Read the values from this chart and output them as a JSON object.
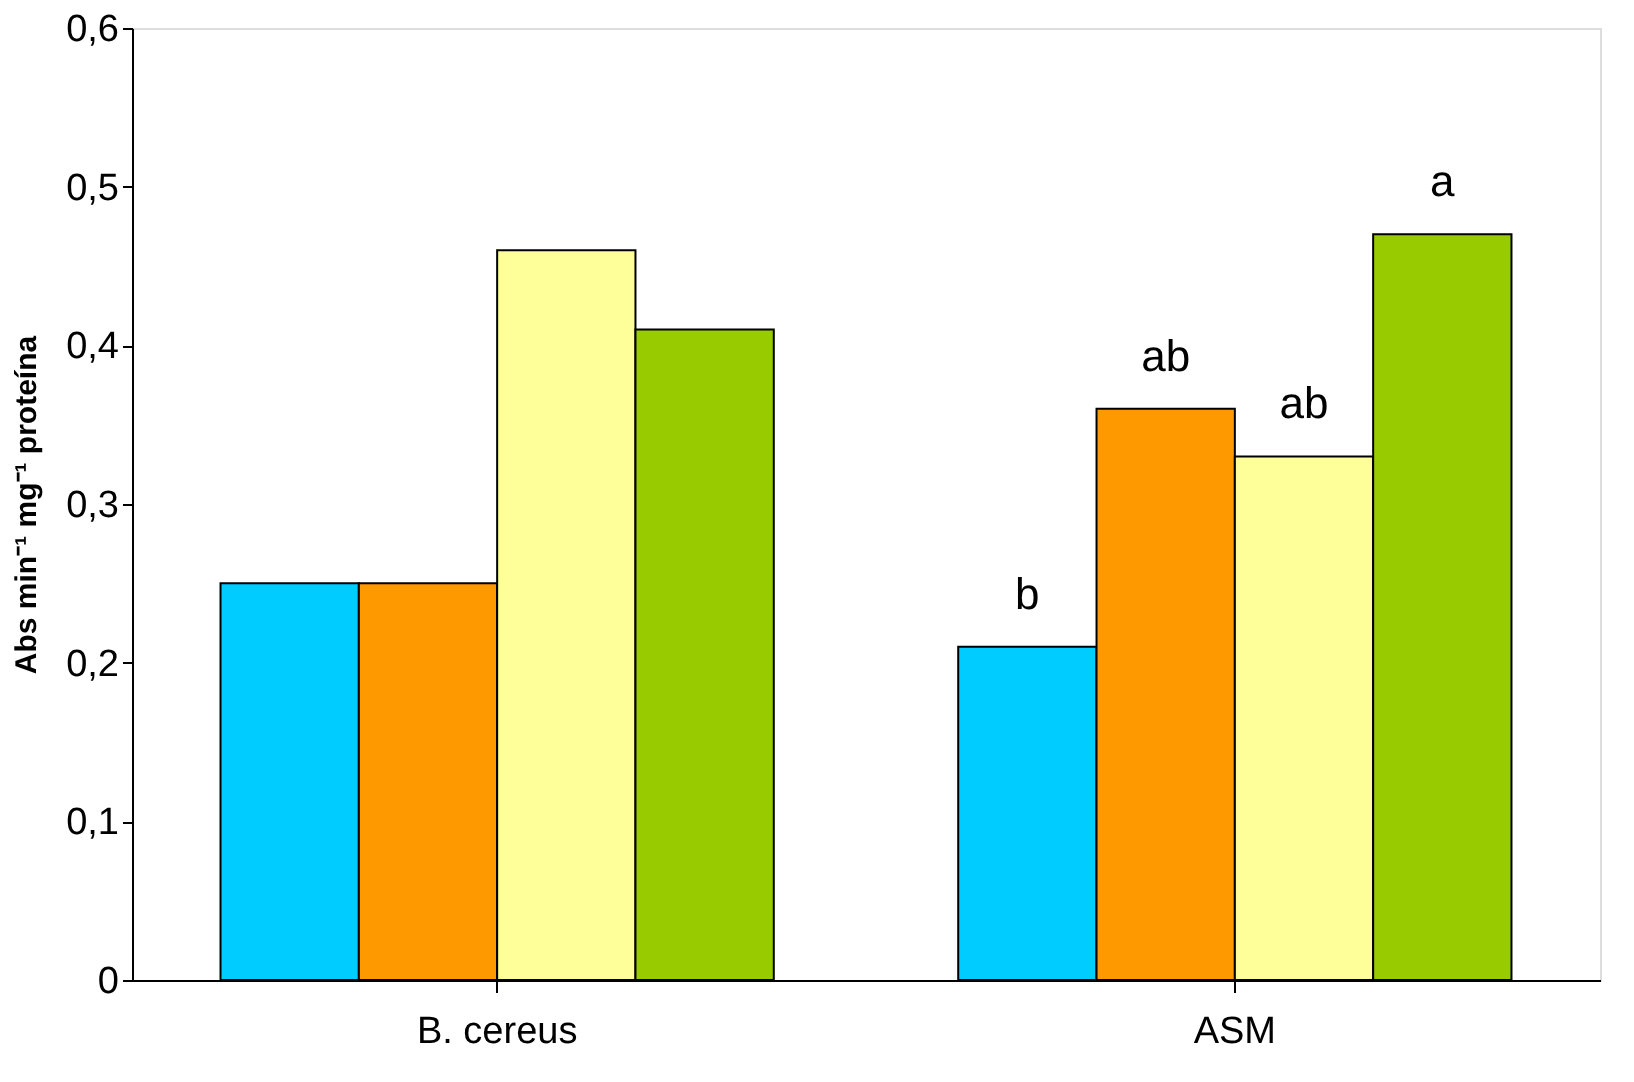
{
  "chart_data": {
    "type": "bar",
    "categories": [
      "B. cereus",
      "ASM"
    ],
    "ylabel": "Abs min⁻¹ mg⁻¹ proteína",
    "series": [
      {
        "color": "#00ccff",
        "values": [
          0.25,
          0.21
        ]
      },
      {
        "color": "#ff9900",
        "values": [
          0.25,
          0.36
        ]
      },
      {
        "color": "#ffff99",
        "values": [
          0.46,
          0.33
        ]
      },
      {
        "color": "#99cc00",
        "values": [
          0.41,
          0.47
        ]
      }
    ],
    "ylim": [
      0,
      0.6
    ],
    "yticks": [
      {
        "value": 0,
        "label": "0"
      },
      {
        "value": 0.1,
        "label": "0,1"
      },
      {
        "value": 0.2,
        "label": "0,2"
      },
      {
        "value": 0.3,
        "label": "0,3"
      },
      {
        "value": 0.4,
        "label": "0,4"
      },
      {
        "value": 0.5,
        "label": "0,5"
      },
      {
        "value": 0.6,
        "label": "0,6"
      }
    ],
    "annotations": [
      "b",
      "ab",
      "ab",
      "a"
    ],
    "grid": false,
    "legend": false
  }
}
